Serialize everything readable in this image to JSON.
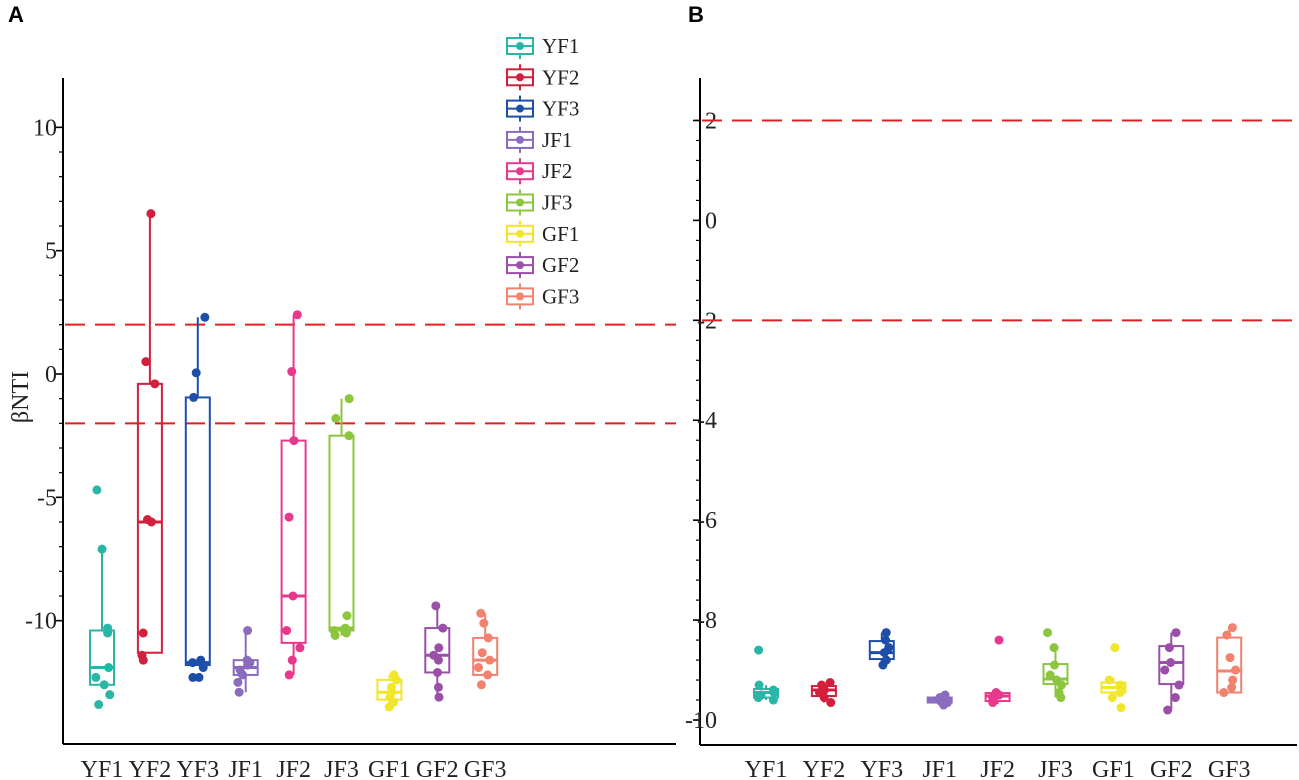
{
  "figure": {
    "panel_a_label": "A",
    "panel_b_label": "B"
  },
  "legend": {
    "entries": [
      "YF1",
      "YF2",
      "YF3",
      "JF1",
      "JF2",
      "JF3",
      "GF1",
      "GF2",
      "GF3"
    ]
  },
  "colors": {
    "YF1": "#2AB5A6",
    "YF2": "#D21F3C",
    "YF3": "#1E4FA8",
    "JF1": "#8B6BBE",
    "JF2": "#E8388E",
    "JF3": "#8CC63F",
    "GF1": "#F0E62A",
    "GF2": "#9B4FA8",
    "GF3": "#F0826E",
    "threshold_line": "#E02020"
  },
  "chart_data": [
    {
      "panel": "A",
      "type": "box",
      "title": "",
      "xlabel": "",
      "ylabel": "βNTI",
      "categories": [
        "YF1",
        "YF2",
        "YF3",
        "JF1",
        "JF2",
        "JF3",
        "GF1",
        "GF2",
        "GF3"
      ],
      "yticks": [
        10,
        5,
        0,
        -5,
        -10
      ],
      "ytick_labels": [
        "10",
        "5",
        "0",
        "-5",
        "-10"
      ],
      "ylim": [
        -15.0,
        12.0
      ],
      "threshold_lines": [
        2,
        -2
      ],
      "boxes": [
        {
          "name": "YF1",
          "q1": -12.6,
          "median": -11.9,
          "q3": -10.4,
          "whisker_low": -12.6,
          "whisker_high": -7.1,
          "points": [
            -4.7,
            -7.1,
            -10.3,
            -10.5,
            -11.9,
            -12.3,
            -12.6,
            -13.0,
            -13.4
          ]
        },
        {
          "name": "YF2",
          "q1": -11.3,
          "median": -6.0,
          "q3": -0.4,
          "whisker_low": -11.3,
          "whisker_high": 6.5,
          "points": [
            6.5,
            0.5,
            -0.4,
            -5.9,
            -6.0,
            -10.5,
            -11.4,
            -11.6
          ]
        },
        {
          "name": "YF3",
          "q1": -11.8,
          "median": -11.7,
          "q3": -0.95,
          "whisker_low": -11.8,
          "whisker_high": 2.3,
          "points": [
            2.3,
            0.05,
            -0.95,
            -11.6,
            -11.7,
            -11.9,
            -12.3,
            -12.3
          ]
        },
        {
          "name": "JF1",
          "q1": -12.2,
          "median": -11.9,
          "q3": -11.6,
          "whisker_low": -12.9,
          "whisker_high": -10.4,
          "points": [
            -10.4,
            -11.6,
            -11.7,
            -11.8,
            -12.0,
            -12.2,
            -12.5,
            -12.9
          ]
        },
        {
          "name": "JF2",
          "q1": -10.9,
          "median": -9.0,
          "q3": -2.7,
          "whisker_low": -12.2,
          "whisker_high": 2.4,
          "points": [
            2.4,
            0.1,
            -2.7,
            -5.8,
            -9.0,
            -10.4,
            -11.1,
            -11.6,
            -12.2
          ]
        },
        {
          "name": "JF3",
          "q1": -10.4,
          "median": -10.3,
          "q3": -2.5,
          "whisker_low": -10.6,
          "whisker_high": -1.0,
          "points": [
            -1.0,
            -1.8,
            -2.5,
            -9.8,
            -10.3,
            -10.4,
            -10.5,
            -10.6
          ]
        },
        {
          "name": "GF1",
          "q1": -13.2,
          "median": -12.9,
          "q3": -12.4,
          "whisker_low": -13.5,
          "whisker_high": -12.2,
          "points": [
            -12.2,
            -12.4,
            -12.7,
            -12.9,
            -13.1,
            -13.3,
            -13.5
          ]
        },
        {
          "name": "GF2",
          "q1": -12.1,
          "median": -11.4,
          "q3": -10.3,
          "whisker_low": -13.1,
          "whisker_high": -9.4,
          "points": [
            -9.4,
            -10.3,
            -11.1,
            -11.4,
            -11.6,
            -12.1,
            -12.7,
            -13.1
          ]
        },
        {
          "name": "GF3",
          "q1": -12.2,
          "median": -11.6,
          "q3": -10.7,
          "whisker_low": -12.2,
          "whisker_high": -9.7,
          "points": [
            -9.7,
            -10.1,
            -10.7,
            -11.3,
            -11.6,
            -11.9,
            -12.2,
            -12.6
          ]
        }
      ]
    },
    {
      "panel": "B",
      "type": "box",
      "title": "",
      "xlabel": "",
      "ylabel": "",
      "categories": [
        "YF1",
        "YF2",
        "YF3",
        "JF1",
        "JF2",
        "JF3",
        "GF1",
        "GF2",
        "GF3"
      ],
      "yticks": [
        2,
        0,
        -2,
        -4,
        -6,
        -8,
        -10
      ],
      "ytick_labels": [
        "2",
        "0",
        "-2",
        "-4",
        "-6",
        "-8",
        "-10"
      ],
      "ylim": [
        -10.5,
        2.85
      ],
      "threshold_lines": [
        2,
        -2
      ],
      "boxes": [
        {
          "name": "YF1",
          "q1": -9.55,
          "median": -9.45,
          "q3": -9.38,
          "whisker_low": -9.6,
          "whisker_high": -9.3,
          "points": [
            -8.6,
            -9.3,
            -9.4,
            -9.45,
            -9.5,
            -9.55,
            -9.6
          ]
        },
        {
          "name": "YF2",
          "q1": -9.52,
          "median": -9.4,
          "q3": -9.32,
          "whisker_low": -9.65,
          "whisker_high": -9.25,
          "points": [
            -9.25,
            -9.3,
            -9.4,
            -9.45,
            -9.55,
            -9.65
          ]
        },
        {
          "name": "YF3",
          "q1": -8.78,
          "median": -8.65,
          "q3": -8.42,
          "whisker_low": -8.92,
          "whisker_high": -8.25,
          "points": [
            -8.25,
            -8.4,
            -8.55,
            -8.65,
            -8.8,
            -8.9
          ]
        },
        {
          "name": "JF1",
          "q1": -9.65,
          "median": -9.6,
          "q3": -9.55,
          "whisker_low": -9.7,
          "whisker_high": -9.5,
          "points": [
            -9.5,
            -9.55,
            -9.6,
            -9.62,
            -9.65,
            -9.7
          ]
        },
        {
          "name": "JF2",
          "q1": -9.62,
          "median": -9.52,
          "q3": -9.46,
          "whisker_low": -9.68,
          "whisker_high": -9.42,
          "points": [
            -8.4,
            -9.45,
            -9.5,
            -9.55,
            -9.6,
            -9.65
          ]
        },
        {
          "name": "JF3",
          "q1": -9.28,
          "median": -9.18,
          "q3": -8.88,
          "whisker_low": -9.55,
          "whisker_high": -8.55,
          "points": [
            -8.25,
            -8.55,
            -8.9,
            -9.1,
            -9.2,
            -9.3,
            -9.45,
            -9.55
          ]
        },
        {
          "name": "GF1",
          "q1": -9.45,
          "median": -9.35,
          "q3": -9.25,
          "whisker_low": -9.55,
          "whisker_high": -9.15,
          "points": [
            -8.55,
            -9.2,
            -9.3,
            -9.35,
            -9.45,
            -9.55,
            -9.75
          ]
        },
        {
          "name": "GF2",
          "q1": -9.28,
          "median": -8.85,
          "q3": -8.52,
          "whisker_low": -9.8,
          "whisker_high": -8.25,
          "points": [
            -8.25,
            -8.55,
            -8.85,
            -9.0,
            -9.3,
            -9.55,
            -9.8
          ]
        },
        {
          "name": "GF3",
          "q1": -9.45,
          "median": -9.02,
          "q3": -8.35,
          "whisker_low": -9.45,
          "whisker_high": -8.15,
          "points": [
            -8.15,
            -8.3,
            -8.75,
            -9.0,
            -9.2,
            -9.35,
            -9.45
          ]
        }
      ]
    }
  ]
}
